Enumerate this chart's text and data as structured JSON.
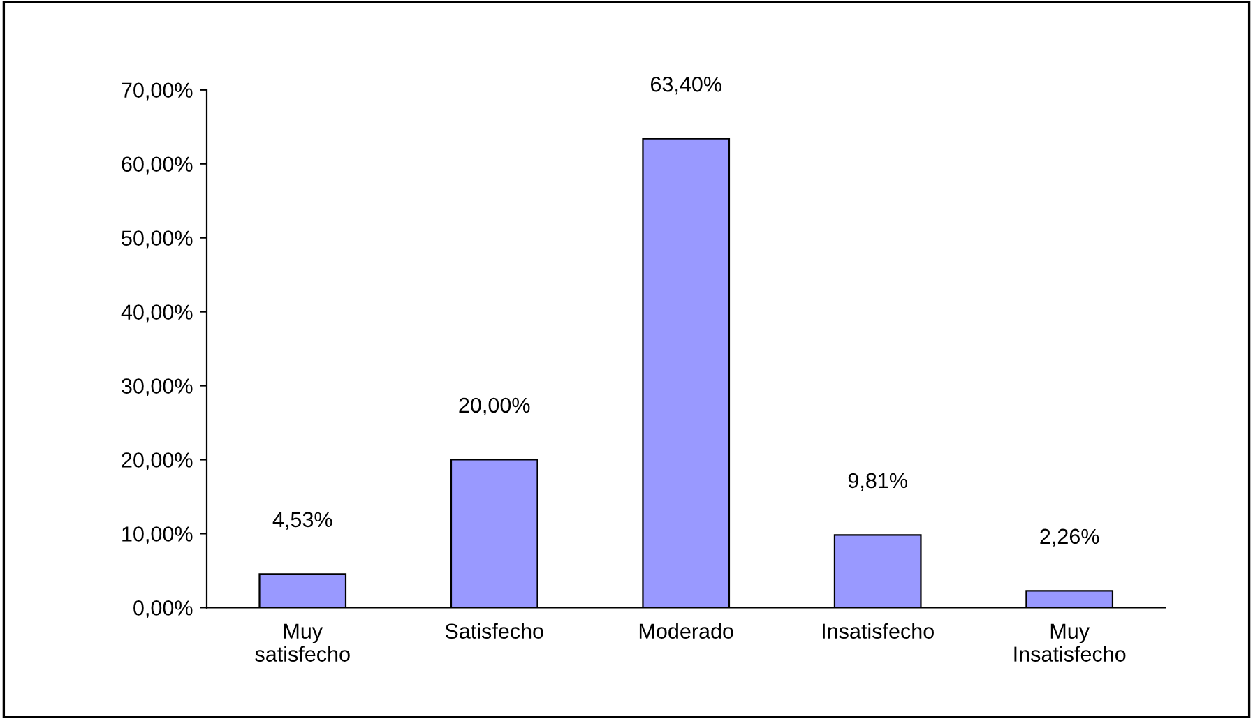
{
  "chart_data": {
    "type": "bar",
    "categories": [
      "Muy\nsatisfecho",
      "Satisfecho",
      "Moderado",
      "Insatisfecho",
      "Muy\nInsatisfecho"
    ],
    "values": [
      4.53,
      20.0,
      63.4,
      9.81,
      2.26
    ],
    "value_labels": [
      "4,53%",
      "20,00%",
      "63,40%",
      "9,81%",
      "2,26%"
    ],
    "color": "#9999ff",
    "ylim": [
      0,
      70
    ],
    "yticks": [
      {
        "value": 0,
        "label": "0,00%"
      },
      {
        "value": 10,
        "label": "10,00%"
      },
      {
        "value": 20,
        "label": "20,00%"
      },
      {
        "value": 30,
        "label": "30,00%"
      },
      {
        "value": 40,
        "label": "40,00%"
      },
      {
        "value": 50,
        "label": "50,00%"
      },
      {
        "value": 60,
        "label": "60,00%"
      },
      {
        "value": 70,
        "label": "70,00%"
      }
    ],
    "grid": false
  }
}
